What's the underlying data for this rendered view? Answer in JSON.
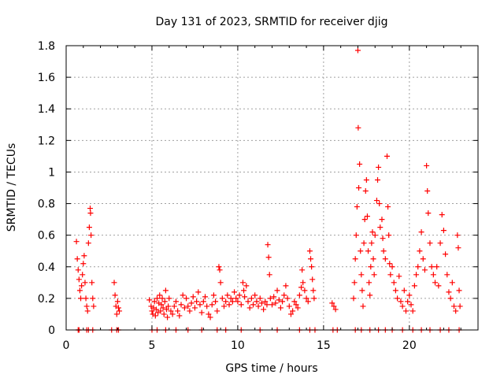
{
  "chart_data": {
    "type": "scatter",
    "title": "Day 131 of 2023, SRMTID for receiver djig",
    "xlabel": "GPS time / hours",
    "ylabel": "SRMTID / TECUs",
    "xlim": [
      0,
      24
    ],
    "ylim": [
      0,
      1.8
    ],
    "x_ticks": [
      0,
      5,
      10,
      15,
      20
    ],
    "x_tick_labels": [
      "0",
      "5",
      "10",
      "15",
      "20"
    ],
    "y_ticks": [
      0,
      0.2,
      0.4,
      0.6,
      0.8,
      1.0,
      1.2,
      1.4,
      1.6,
      1.8
    ],
    "y_tick_labels": [
      "0",
      "0.2",
      "0.4",
      "0.6",
      "0.8",
      "1",
      "1.2",
      "1.4",
      "1.6",
      "1.8"
    ],
    "grid": true,
    "marker": "+",
    "color": "#ff0000",
    "series": [
      {
        "name": "SRMTID",
        "points": [
          [
            0.6,
            0.56
          ],
          [
            0.65,
            0.45
          ],
          [
            0.7,
            0.38
          ],
          [
            0.75,
            0.32
          ],
          [
            0.8,
            0.25
          ],
          [
            0.85,
            0.2
          ],
          [
            0.9,
            0.28
          ],
          [
            0.95,
            0.35
          ],
          [
            1.0,
            0.42
          ],
          [
            1.05,
            0.47
          ],
          [
            1.1,
            0.3
          ],
          [
            1.15,
            0.2
          ],
          [
            1.2,
            0.15
          ],
          [
            1.25,
            0.12
          ],
          [
            1.3,
            0.55
          ],
          [
            1.35,
            0.65
          ],
          [
            1.4,
            0.77
          ],
          [
            1.42,
            0.74
          ],
          [
            1.45,
            0.6
          ],
          [
            1.5,
            0.3
          ],
          [
            1.55,
            0.2
          ],
          [
            1.6,
            0.15
          ],
          [
            0.7,
            0.0
          ],
          [
            0.75,
            0.0
          ],
          [
            1.2,
            0.0
          ],
          [
            1.3,
            0.0
          ],
          [
            1.55,
            0.0
          ],
          [
            2.8,
            0.3
          ],
          [
            2.85,
            0.22
          ],
          [
            2.9,
            0.15
          ],
          [
            2.95,
            0.1
          ],
          [
            3.0,
            0.18
          ],
          [
            3.05,
            0.14
          ],
          [
            3.1,
            0.12
          ],
          [
            2.65,
            0.0
          ],
          [
            2.95,
            0.0
          ],
          [
            3.05,
            0.0
          ],
          [
            4.85,
            0.19
          ],
          [
            4.95,
            0.15
          ],
          [
            5.0,
            0.12
          ],
          [
            5.05,
            0.1
          ],
          [
            5.1,
            0.14
          ],
          [
            5.15,
            0.18
          ],
          [
            5.2,
            0.09
          ],
          [
            5.25,
            0.13
          ],
          [
            5.3,
            0.2
          ],
          [
            5.35,
            0.11
          ],
          [
            5.4,
            0.17
          ],
          [
            5.45,
            0.22
          ],
          [
            5.5,
            0.12
          ],
          [
            5.55,
            0.16
          ],
          [
            5.6,
            0.2
          ],
          [
            5.65,
            0.14
          ],
          [
            5.7,
            0.1
          ],
          [
            5.75,
            0.18
          ],
          [
            5.8,
            0.25
          ],
          [
            5.85,
            0.13
          ],
          [
            5.9,
            0.08
          ],
          [
            5.95,
            0.15
          ],
          [
            6.0,
            0.2
          ],
          [
            6.1,
            0.12
          ],
          [
            6.2,
            0.1
          ],
          [
            6.3,
            0.15
          ],
          [
            6.4,
            0.18
          ],
          [
            6.5,
            0.12
          ],
          [
            6.6,
            0.09
          ],
          [
            6.7,
            0.16
          ],
          [
            6.8,
            0.22
          ],
          [
            6.9,
            0.14
          ],
          [
            7.0,
            0.2
          ],
          [
            7.1,
            0.15
          ],
          [
            7.2,
            0.12
          ],
          [
            7.3,
            0.17
          ],
          [
            7.4,
            0.21
          ],
          [
            7.5,
            0.14
          ],
          [
            7.6,
            0.18
          ],
          [
            7.7,
            0.24
          ],
          [
            7.8,
            0.16
          ],
          [
            7.9,
            0.11
          ],
          [
            8.0,
            0.18
          ],
          [
            8.1,
            0.21
          ],
          [
            8.2,
            0.15
          ],
          [
            8.3,
            0.1
          ],
          [
            8.4,
            0.08
          ],
          [
            8.5,
            0.16
          ],
          [
            8.6,
            0.22
          ],
          [
            8.7,
            0.18
          ],
          [
            8.8,
            0.12
          ],
          [
            8.9,
            0.4
          ],
          [
            8.95,
            0.38
          ],
          [
            9.0,
            0.3
          ],
          [
            9.1,
            0.2
          ],
          [
            9.2,
            0.15
          ],
          [
            9.3,
            0.18
          ],
          [
            9.4,
            0.22
          ],
          [
            9.5,
            0.16
          ],
          [
            9.6,
            0.2
          ],
          [
            9.7,
            0.18
          ],
          [
            9.8,
            0.24
          ],
          [
            9.9,
            0.2
          ],
          [
            10.0,
            0.18
          ],
          [
            10.1,
            0.22
          ],
          [
            10.2,
            0.16
          ],
          [
            10.3,
            0.3
          ],
          [
            10.35,
            0.25
          ],
          [
            10.4,
            0.21
          ],
          [
            10.5,
            0.28
          ],
          [
            10.6,
            0.18
          ],
          [
            10.7,
            0.14
          ],
          [
            10.8,
            0.2
          ],
          [
            10.9,
            0.16
          ],
          [
            11.0,
            0.22
          ],
          [
            11.1,
            0.18
          ],
          [
            11.2,
            0.15
          ],
          [
            11.3,
            0.2
          ],
          [
            11.4,
            0.17
          ],
          [
            11.5,
            0.13
          ],
          [
            11.6,
            0.18
          ],
          [
            11.7,
            0.16
          ],
          [
            11.75,
            0.54
          ],
          [
            11.8,
            0.46
          ],
          [
            11.85,
            0.35
          ],
          [
            11.9,
            0.2
          ],
          [
            12.0,
            0.16
          ],
          [
            12.1,
            0.21
          ],
          [
            12.2,
            0.17
          ],
          [
            12.3,
            0.25
          ],
          [
            12.4,
            0.19
          ],
          [
            12.5,
            0.14
          ],
          [
            12.6,
            0.18
          ],
          [
            12.7,
            0.22
          ],
          [
            12.8,
            0.28
          ],
          [
            12.9,
            0.2
          ],
          [
            13.0,
            0.15
          ],
          [
            13.1,
            0.1
          ],
          [
            13.2,
            0.12
          ],
          [
            13.3,
            0.18
          ],
          [
            13.4,
            0.16
          ],
          [
            13.5,
            0.14
          ],
          [
            13.6,
            0.22
          ],
          [
            13.7,
            0.27
          ],
          [
            13.75,
            0.38
          ],
          [
            13.8,
            0.3
          ],
          [
            13.9,
            0.25
          ],
          [
            14.0,
            0.2
          ],
          [
            14.1,
            0.18
          ],
          [
            14.2,
            0.5
          ],
          [
            14.25,
            0.45
          ],
          [
            14.3,
            0.4
          ],
          [
            14.35,
            0.32
          ],
          [
            14.4,
            0.25
          ],
          [
            14.45,
            0.2
          ],
          [
            5.0,
            0.0
          ],
          [
            5.3,
            0.0
          ],
          [
            5.8,
            0.0
          ],
          [
            6.4,
            0.0
          ],
          [
            7.1,
            0.0
          ],
          [
            7.9,
            0.0
          ],
          [
            8.8,
            0.0
          ],
          [
            9.3,
            0.0
          ],
          [
            10.2,
            0.0
          ],
          [
            11.3,
            0.0
          ],
          [
            12.3,
            0.0
          ],
          [
            13.6,
            0.0
          ],
          [
            14.2,
            0.0
          ],
          [
            14.5,
            0.0
          ],
          [
            15.5,
            0.17
          ],
          [
            15.6,
            0.15
          ],
          [
            15.7,
            0.13
          ],
          [
            15.55,
            0.0
          ],
          [
            15.8,
            0.0
          ],
          [
            16.75,
            0.2
          ],
          [
            16.8,
            0.3
          ],
          [
            16.85,
            0.45
          ],
          [
            16.9,
            0.6
          ],
          [
            16.95,
            0.78
          ],
          [
            17.0,
            1.77
          ],
          [
            17.02,
            1.28
          ],
          [
            17.05,
            0.9
          ],
          [
            17.1,
            1.05
          ],
          [
            17.15,
            0.5
          ],
          [
            17.2,
            0.35
          ],
          [
            17.25,
            0.25
          ],
          [
            17.3,
            0.15
          ],
          [
            17.35,
            0.55
          ],
          [
            17.4,
            0.7
          ],
          [
            17.45,
            0.88
          ],
          [
            17.5,
            0.95
          ],
          [
            17.55,
            0.72
          ],
          [
            17.6,
            0.5
          ],
          [
            17.65,
            0.3
          ],
          [
            17.7,
            0.22
          ],
          [
            17.75,
            0.4
          ],
          [
            17.8,
            0.55
          ],
          [
            17.85,
            0.62
          ],
          [
            17.9,
            0.45
          ],
          [
            17.95,
            0.35
          ],
          [
            18.0,
            0.6
          ],
          [
            18.1,
            0.82
          ],
          [
            18.15,
            0.95
          ],
          [
            18.2,
            1.03
          ],
          [
            18.25,
            0.8
          ],
          [
            18.3,
            0.65
          ],
          [
            18.4,
            0.7
          ],
          [
            18.45,
            0.58
          ],
          [
            18.5,
            0.5
          ],
          [
            18.6,
            0.45
          ],
          [
            18.7,
            1.1
          ],
          [
            18.75,
            0.78
          ],
          [
            18.8,
            0.6
          ],
          [
            18.85,
            0.42
          ],
          [
            18.9,
            0.35
          ],
          [
            19.0,
            0.4
          ],
          [
            19.1,
            0.3
          ],
          [
            19.2,
            0.25
          ],
          [
            19.3,
            0.2
          ],
          [
            19.4,
            0.34
          ],
          [
            19.5,
            0.18
          ],
          [
            19.6,
            0.15
          ],
          [
            19.7,
            0.25
          ],
          [
            19.8,
            0.12
          ],
          [
            19.9,
            0.18
          ],
          [
            20.0,
            0.22
          ],
          [
            20.1,
            0.16
          ],
          [
            20.2,
            0.12
          ],
          [
            20.3,
            0.28
          ],
          [
            20.4,
            0.35
          ],
          [
            20.5,
            0.4
          ],
          [
            20.6,
            0.5
          ],
          [
            20.7,
            0.62
          ],
          [
            20.8,
            0.45
          ],
          [
            20.9,
            0.38
          ],
          [
            21.0,
            1.04
          ],
          [
            21.05,
            0.88
          ],
          [
            21.1,
            0.74
          ],
          [
            21.2,
            0.55
          ],
          [
            21.3,
            0.4
          ],
          [
            21.4,
            0.35
          ],
          [
            21.5,
            0.3
          ],
          [
            21.6,
            0.4
          ],
          [
            21.7,
            0.28
          ],
          [
            21.8,
            0.55
          ],
          [
            21.9,
            0.73
          ],
          [
            22.0,
            0.63
          ],
          [
            22.1,
            0.48
          ],
          [
            22.2,
            0.35
          ],
          [
            22.3,
            0.24
          ],
          [
            22.4,
            0.2
          ],
          [
            22.5,
            0.3
          ],
          [
            22.6,
            0.15
          ],
          [
            22.7,
            0.12
          ],
          [
            22.8,
            0.6
          ],
          [
            22.85,
            0.52
          ],
          [
            22.9,
            0.25
          ],
          [
            22.95,
            0.15
          ],
          [
            16.85,
            0.0
          ],
          [
            17.2,
            0.0
          ],
          [
            17.7,
            0.0
          ],
          [
            18.2,
            0.0
          ],
          [
            18.6,
            0.0
          ],
          [
            19.0,
            0.0
          ],
          [
            19.6,
            0.0
          ],
          [
            20.2,
            0.0
          ],
          [
            20.7,
            0.0
          ],
          [
            21.2,
            0.0
          ],
          [
            21.8,
            0.0
          ],
          [
            22.3,
            0.0
          ],
          [
            22.9,
            0.0
          ]
        ]
      }
    ]
  }
}
